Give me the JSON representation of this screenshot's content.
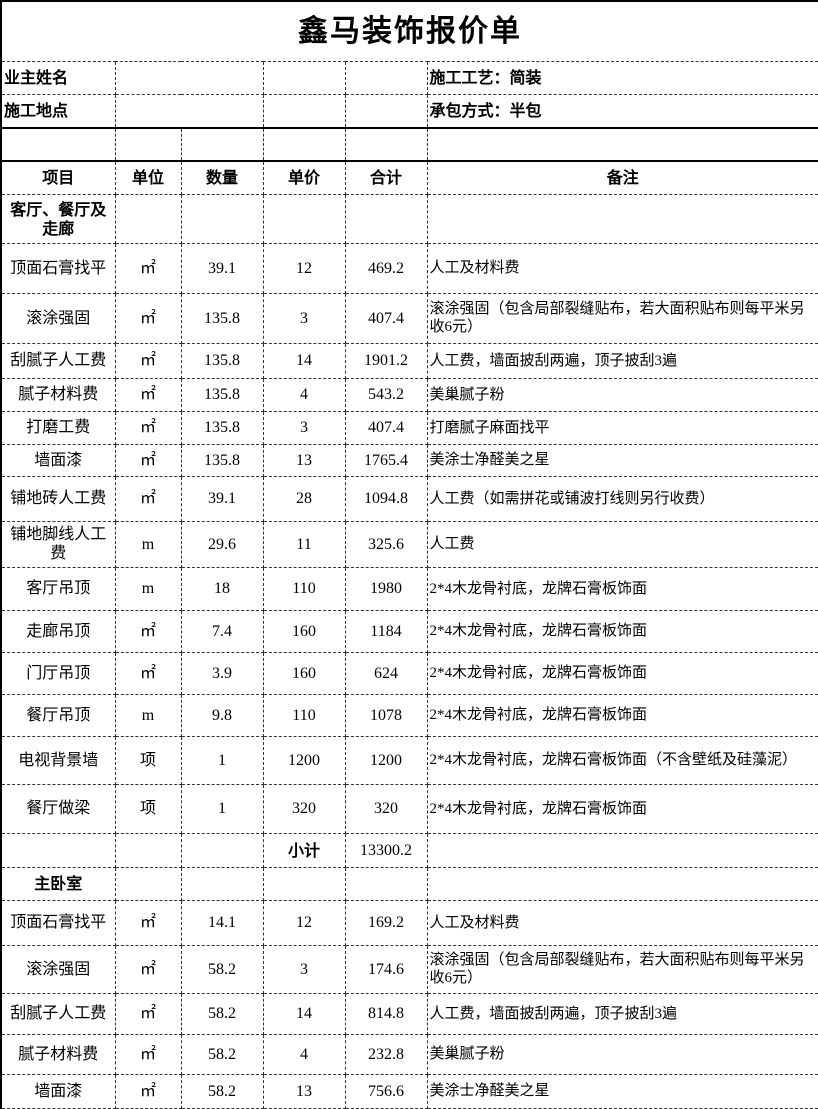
{
  "title": "鑫马装饰报价单",
  "info": {
    "owner_label": "业主姓名",
    "site_label": "施工地点",
    "craft": "施工工艺：简装",
    "contract": "承包方式：半包"
  },
  "headers": [
    "项目",
    "单位",
    "数量",
    "单价",
    "合计",
    "备注"
  ],
  "sections": [
    {
      "name": "客厅、餐厅及走廊",
      "rows": [
        [
          "顶面石膏找平",
          "㎡",
          "39.1",
          "12",
          "469.2",
          "人工及材料费"
        ],
        [
          "滚涂强固",
          "㎡",
          "135.8",
          "3",
          "407.4",
          "滚涂强固（包含局部裂缝贴布，若大面积贴布则每平米另收6元）"
        ],
        [
          "刮腻子人工费",
          "㎡",
          "135.8",
          "14",
          "1901.2",
          "人工费，墙面披刮两遍，顶子披刮3遍"
        ],
        [
          "腻子材料费",
          "㎡",
          "135.8",
          "4",
          "543.2",
          "美巢腻子粉"
        ],
        [
          "打磨工费",
          "㎡",
          "135.8",
          "3",
          "407.4",
          "打磨腻子麻面找平"
        ],
        [
          "墙面漆",
          "㎡",
          "135.8",
          "13",
          "1765.4",
          "美涂士净醛美之星"
        ],
        [
          "铺地砖人工费",
          "㎡",
          "39.1",
          "28",
          "1094.8",
          "人工费（如需拼花或铺波打线则另行收费）"
        ],
        [
          "铺地脚线人工费",
          "m",
          "29.6",
          "11",
          "325.6",
          "人工费"
        ],
        [
          "客厅吊顶",
          "m",
          "18",
          "110",
          "1980",
          "2*4木龙骨衬底，龙牌石膏板饰面"
        ],
        [
          "走廊吊顶",
          "㎡",
          "7.4",
          "160",
          "1184",
          "2*4木龙骨衬底，龙牌石膏板饰面"
        ],
        [
          "门厅吊顶",
          "㎡",
          "3.9",
          "160",
          "624",
          "2*4木龙骨衬底，龙牌石膏板饰面"
        ],
        [
          "餐厅吊顶",
          "m",
          "9.8",
          "110",
          "1078",
          "2*4木龙骨衬底，龙牌石膏板饰面"
        ],
        [
          "电视背景墙",
          "项",
          "1",
          "1200",
          "1200",
          "2*4木龙骨衬底，龙牌石膏板饰面（不含壁纸及硅藻泥）"
        ],
        [
          "餐厅做梁",
          "项",
          "1",
          "320",
          "320",
          "2*4木龙骨衬底，龙牌石膏板饰面"
        ]
      ],
      "subtotal_label": "小计",
      "subtotal": "13300.2"
    },
    {
      "name": "主卧室",
      "rows": [
        [
          "顶面石膏找平",
          "㎡",
          "14.1",
          "12",
          "169.2",
          "人工及材料费"
        ],
        [
          "滚涂强固",
          "㎡",
          "58.2",
          "3",
          "174.6",
          "滚涂强固（包含局部裂缝贴布，若大面积贴布则每平米另收6元）"
        ],
        [
          "刮腻子人工费",
          "㎡",
          "58.2",
          "14",
          "814.8",
          "人工费，墙面披刮两遍，顶子披刮3遍"
        ],
        [
          "腻子材料费",
          "㎡",
          "58.2",
          "4",
          "232.8",
          "美巢腻子粉"
        ],
        [
          "墙面漆",
          "㎡",
          "58.2",
          "13",
          "756.6",
          "美涂士净醛美之星"
        ]
      ]
    }
  ]
}
